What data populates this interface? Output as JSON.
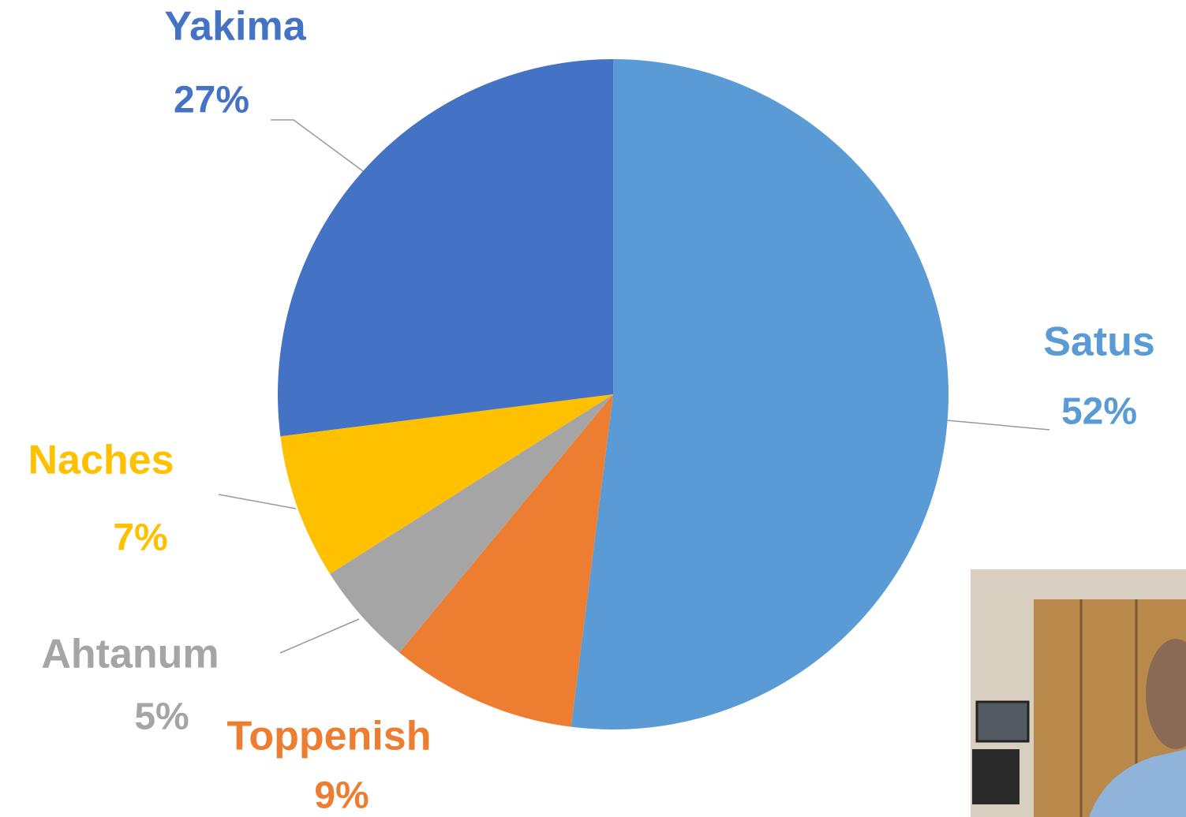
{
  "chart_data": {
    "type": "pie",
    "categories": [
      "Satus",
      "Toppenish",
      "Ahtanum",
      "Naches",
      "Yakima"
    ],
    "values": [
      52,
      9,
      5,
      7,
      27
    ],
    "value_labels": [
      "52%",
      "9%",
      "5%",
      "7%",
      "27%"
    ],
    "colors": [
      "#5b9bd5",
      "#ed7d31",
      "#a5a5a5",
      "#ffc000",
      "#4472c4"
    ]
  }
}
